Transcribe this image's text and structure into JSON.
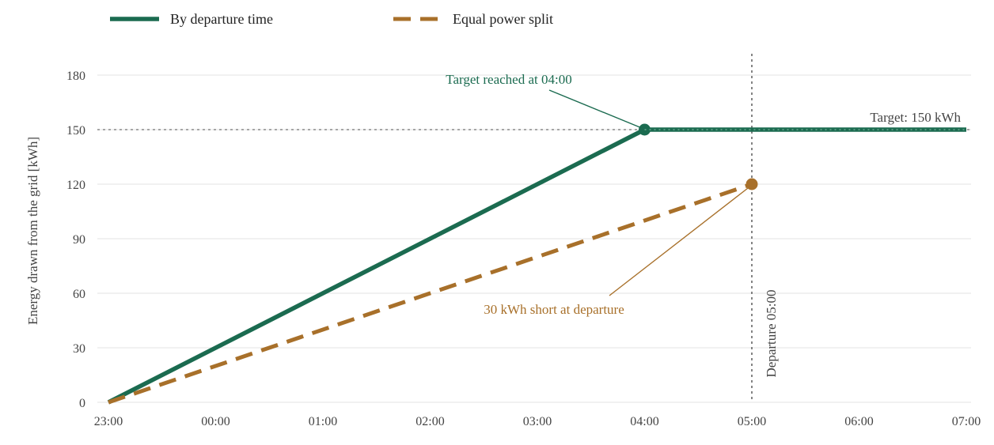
{
  "chart_data": {
    "type": "line",
    "ylabel": "Energy drawn from the grid [kWh]",
    "xlabel": "",
    "x_tick_labels": [
      "23:00",
      "00:00",
      "01:00",
      "02:00",
      "03:00",
      "04:00",
      "05:00",
      "06:00",
      "07:00"
    ],
    "x_range_hours_from_first_tick": [
      0,
      8
    ],
    "y_ticks": [
      0,
      30,
      60,
      90,
      120,
      150,
      180
    ],
    "ylim": [
      0,
      180
    ],
    "grid": "horizontal",
    "legend_position": "top-left",
    "series": [
      {
        "name": "By departure time",
        "style": "solid",
        "color": "#1b6b50",
        "points": [
          {
            "t": "23:00",
            "y": 0
          },
          {
            "t": "04:00",
            "y": 150
          },
          {
            "t": "07:00",
            "y": 150
          }
        ],
        "marker_at": {
          "t": "04:00",
          "y": 150
        }
      },
      {
        "name": "Equal power split",
        "style": "dashed",
        "color": "#a8702a",
        "points": [
          {
            "t": "23:00",
            "y": 0
          },
          {
            "t": "05:00",
            "y": 120
          }
        ],
        "marker_at": {
          "t": "05:00",
          "y": 120
        }
      }
    ],
    "target": {
      "y": 150,
      "label": "Target: 150 kWh"
    },
    "departure": {
      "t": "05:00",
      "label": "Departure 05:00"
    },
    "annotations": [
      {
        "text": "Target reached at 04:00",
        "color": "#1b6b50",
        "points_to": {
          "t": "04:00",
          "y": 150
        }
      },
      {
        "text": "30 kWh short at departure",
        "color": "#a8702a",
        "points_to": {
          "t": "05:00",
          "y": 120
        }
      }
    ]
  }
}
